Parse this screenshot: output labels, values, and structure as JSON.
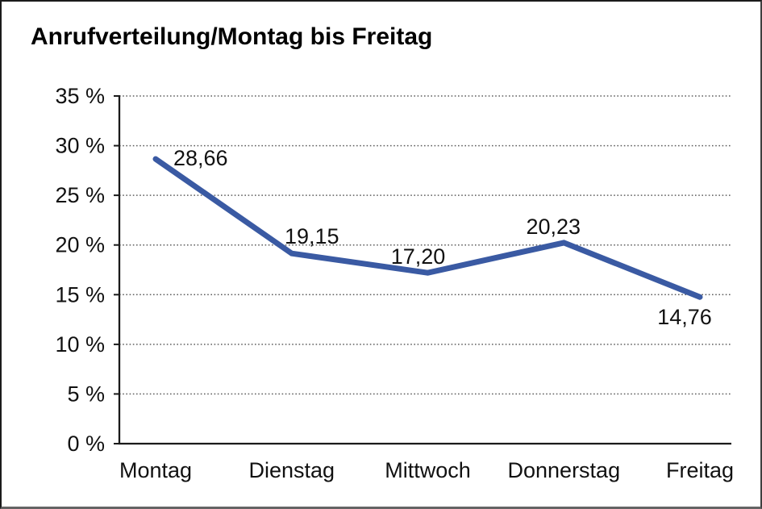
{
  "chart_data": {
    "type": "line",
    "title": "Anrufverteilung/Montag bis Freitag",
    "categories": [
      "Montag",
      "Dienstag",
      "Mittwoch",
      "Donnerstag",
      "Freitag"
    ],
    "values": [
      28.66,
      19.15,
      17.2,
      20.23,
      14.76
    ],
    "value_labels": [
      "28,66",
      "19,15",
      "17,20",
      "20,23",
      "14,76"
    ],
    "series_name": "Anrufverteilung",
    "xlabel": "",
    "ylabel": "",
    "ylim": [
      0,
      35
    ],
    "ytick_step": 5,
    "ytick_labels": [
      "0 %",
      "5 %",
      "10 %",
      "15 %",
      "20 %",
      "25 %",
      "30 %",
      "35 %"
    ],
    "grid": "horizontal-dotted",
    "legend": "none",
    "colors": {
      "line": "#3A5AA3",
      "axis": "#1a1a1a",
      "grid": "#5f5f5f",
      "text": "#111111"
    }
  }
}
